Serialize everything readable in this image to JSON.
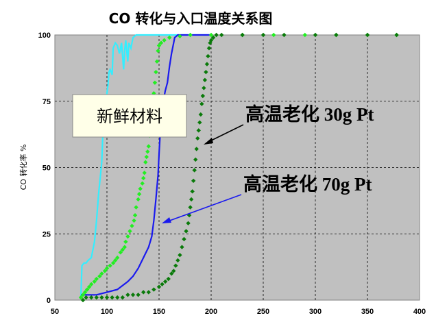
{
  "chart_data": {
    "type": "scatter",
    "title": "CO 转化与入口温度关系图",
    "xlabel": "",
    "ylabel": "CO 转化率 %",
    "xlim": [
      50,
      400
    ],
    "ylim": [
      0,
      100
    ],
    "x_ticks": [
      50,
      100,
      150,
      200,
      250,
      300,
      350,
      400
    ],
    "y_ticks": [
      0,
      25,
      50,
      75,
      100
    ],
    "grid": true,
    "legend": "none",
    "series": [
      {
        "color": "#33eeff",
        "style": "line",
        "points": [
          [
            75,
            1
          ],
          [
            76,
            13
          ],
          [
            78,
            14
          ],
          [
            80,
            14
          ],
          [
            82,
            15
          ],
          [
            85,
            16
          ],
          [
            88,
            22
          ],
          [
            90,
            30
          ],
          [
            92,
            40
          ],
          [
            94,
            48
          ],
          [
            95,
            52
          ],
          [
            96,
            62
          ],
          [
            97,
            63
          ],
          [
            98,
            69
          ],
          [
            99,
            72
          ],
          [
            100,
            78
          ],
          [
            101,
            81
          ],
          [
            102,
            86
          ],
          [
            103,
            87
          ],
          [
            105,
            85
          ],
          [
            106,
            95
          ],
          [
            108,
            97
          ],
          [
            110,
            96
          ],
          [
            112,
            93
          ],
          [
            114,
            97
          ],
          [
            116,
            87
          ],
          [
            117,
            94
          ],
          [
            118,
            98
          ],
          [
            120,
            90
          ],
          [
            121,
            97
          ],
          [
            123,
            95
          ],
          [
            125,
            99
          ],
          [
            128,
            100
          ],
          [
            135,
            100
          ],
          [
            150,
            100
          ],
          [
            170,
            100
          ],
          [
            200,
            100
          ]
        ]
      },
      {
        "color": "#1a1aee",
        "style": "line",
        "points": [
          [
            75,
            2
          ],
          [
            80,
            2
          ],
          [
            90,
            2
          ],
          [
            100,
            3
          ],
          [
            110,
            4
          ],
          [
            120,
            7
          ],
          [
            125,
            9
          ],
          [
            130,
            12
          ],
          [
            135,
            16
          ],
          [
            140,
            20
          ],
          [
            143,
            24
          ],
          [
            145,
            30
          ],
          [
            147,
            38
          ],
          [
            149,
            47
          ],
          [
            150,
            55
          ],
          [
            151,
            62
          ],
          [
            152,
            68
          ],
          [
            153,
            72
          ],
          [
            154,
            75
          ],
          [
            156,
            79
          ],
          [
            158,
            82
          ],
          [
            160,
            88
          ],
          [
            162,
            93
          ],
          [
            164,
            97
          ],
          [
            165,
            99
          ],
          [
            168,
            100
          ],
          [
            180,
            100
          ],
          [
            200,
            100
          ]
        ]
      },
      {
        "color": "#22ee22",
        "style": "markers",
        "points": [
          [
            75,
            1
          ],
          [
            77,
            2
          ],
          [
            79,
            3
          ],
          [
            81,
            4
          ],
          [
            83,
            5
          ],
          [
            85,
            6
          ],
          [
            88,
            7
          ],
          [
            90,
            8
          ],
          [
            93,
            9
          ],
          [
            95,
            10
          ],
          [
            98,
            11
          ],
          [
            100,
            12
          ],
          [
            103,
            13
          ],
          [
            106,
            14
          ],
          [
            108,
            15
          ],
          [
            110,
            16
          ],
          [
            113,
            18
          ],
          [
            115,
            19
          ],
          [
            117,
            20
          ],
          [
            118,
            22
          ],
          [
            120,
            24
          ],
          [
            122,
            26
          ],
          [
            124,
            28
          ],
          [
            126,
            30
          ],
          [
            127,
            32
          ],
          [
            128,
            35
          ],
          [
            130,
            38
          ],
          [
            131,
            40
          ],
          [
            132,
            42
          ],
          [
            134,
            44
          ],
          [
            135,
            46
          ],
          [
            136,
            48
          ],
          [
            137,
            52
          ],
          [
            138,
            54
          ],
          [
            139,
            56
          ],
          [
            140,
            58
          ],
          [
            141,
            62
          ],
          [
            142,
            66
          ],
          [
            143,
            70
          ],
          [
            144,
            74
          ],
          [
            145,
            78
          ],
          [
            146,
            82
          ],
          [
            147,
            86
          ],
          [
            148,
            90
          ],
          [
            149,
            94
          ],
          [
            150,
            96
          ],
          [
            152,
            97
          ],
          [
            155,
            98
          ],
          [
            160,
            99
          ],
          [
            170,
            99.5
          ],
          [
            180,
            100
          ],
          [
            200,
            100
          ],
          [
            230,
            100
          ],
          [
            260,
            100
          ],
          [
            290,
            100
          ],
          [
            320,
            100
          ],
          [
            350,
            100
          ],
          [
            378,
            100
          ]
        ]
      },
      {
        "color": "#0a7a0a",
        "style": "markers",
        "points": [
          [
            77,
            0
          ],
          [
            80,
            1
          ],
          [
            85,
            1
          ],
          [
            90,
            1
          ],
          [
            95,
            1
          ],
          [
            100,
            1
          ],
          [
            105,
            1
          ],
          [
            110,
            1
          ],
          [
            115,
            1
          ],
          [
            120,
            2
          ],
          [
            125,
            2
          ],
          [
            130,
            2
          ],
          [
            135,
            3
          ],
          [
            140,
            3
          ],
          [
            145,
            4
          ],
          [
            150,
            5
          ],
          [
            153,
            6
          ],
          [
            156,
            7
          ],
          [
            159,
            8
          ],
          [
            162,
            10
          ],
          [
            164,
            11
          ],
          [
            166,
            13
          ],
          [
            168,
            15
          ],
          [
            170,
            17
          ],
          [
            172,
            20
          ],
          [
            174,
            23
          ],
          [
            176,
            26
          ],
          [
            178,
            29
          ],
          [
            179,
            32
          ],
          [
            180,
            35
          ],
          [
            181,
            38
          ],
          [
            182,
            41
          ],
          [
            183,
            45
          ],
          [
            184,
            49
          ],
          [
            185,
            53
          ],
          [
            186,
            57
          ],
          [
            187,
            61
          ],
          [
            188,
            64
          ],
          [
            189,
            67
          ],
          [
            190,
            70
          ],
          [
            191,
            74
          ],
          [
            192,
            77
          ],
          [
            193,
            80
          ],
          [
            194,
            83
          ],
          [
            195,
            86
          ],
          [
            196,
            89
          ],
          [
            197,
            92
          ],
          [
            198,
            95
          ],
          [
            199,
            97
          ],
          [
            200,
            98
          ],
          [
            202,
            99
          ],
          [
            205,
            100
          ],
          [
            210,
            100
          ],
          [
            230,
            100
          ],
          [
            250,
            100
          ],
          [
            270,
            100
          ],
          [
            300,
            100
          ],
          [
            320,
            100
          ],
          [
            350,
            100
          ],
          [
            378,
            100
          ]
        ]
      }
    ],
    "annotations": [
      {
        "text": "新鲜材料",
        "boxed": true
      },
      {
        "text": "高温老化 30g Pt",
        "color": "#2a2aa0"
      },
      {
        "text": "高温老化 70g Pt",
        "color": "#1a1aee"
      }
    ]
  }
}
